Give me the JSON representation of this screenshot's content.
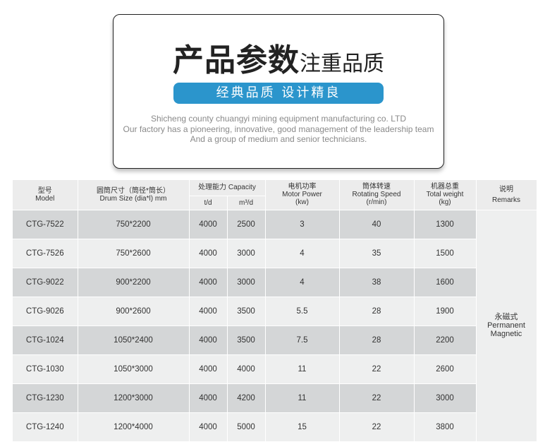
{
  "header": {
    "title_bold": "产品参数",
    "title_light": "注重品质",
    "tagline": "经典品质  设计精良",
    "desc": [
      "Shicheng county chuangyi mining equipment manufacturing co. LTD",
      "Our factory has a pioneering, innovative, good management of the leadership team",
      "And a group of medium and senior technicians."
    ]
  },
  "colors": {
    "accent": "#2b95cc"
  },
  "table": {
    "headers": {
      "model_cn": "型号",
      "model_en": "Model",
      "drum_cn": "圆筒尺寸（筒径*筒长）",
      "drum_en": "Drum Size (dia*l) mm",
      "cap": "处理能力 Capacity",
      "cap_td": "t/d",
      "cap_m3": "m³/d",
      "power_cn": "电机功率",
      "power_en": "Motor Power",
      "power_unit": "(kw)",
      "speed_cn": "筒体转速",
      "speed_en": "Rotating Speed",
      "speed_unit": "(r/min)",
      "weight_cn": "机器总重",
      "weight_en": "Total weight",
      "weight_unit": "(kg)",
      "rem_cn": "说明",
      "rem_en": "Remarks"
    },
    "remarks": {
      "cn": "永磁式",
      "en1": "Permanent",
      "en2": "Magnetic"
    },
    "rows": [
      [
        "CTG-7522",
        "750*2200",
        "4000",
        "2500",
        "3",
        "40",
        "1300"
      ],
      [
        "CTG-7526",
        "750*2600",
        "4000",
        "3000",
        "4",
        "35",
        "1500"
      ],
      [
        "CTG-9022",
        "900*2200",
        "4000",
        "3000",
        "4",
        "38",
        "1600"
      ],
      [
        "CTG-9026",
        "900*2600",
        "4000",
        "3500",
        "5.5",
        "28",
        "1900"
      ],
      [
        "CTG-1024",
        "1050*2400",
        "4000",
        "3500",
        "7.5",
        "28",
        "2200"
      ],
      [
        "CTG-1030",
        "1050*3000",
        "4000",
        "4000",
        "11",
        "22",
        "2600"
      ],
      [
        "CTG-1230",
        "1200*3000",
        "4000",
        "4200",
        "11",
        "22",
        "3000"
      ],
      [
        "CTG-1240",
        "1200*4000",
        "4000",
        "5000",
        "15",
        "22",
        "3800"
      ]
    ]
  }
}
